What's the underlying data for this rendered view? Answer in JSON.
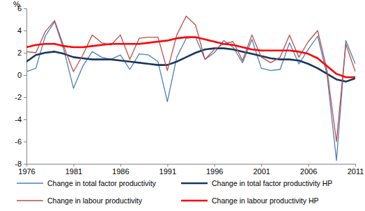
{
  "chart_data": {
    "type": "line",
    "ylabel": "%",
    "x": [
      1976,
      1977,
      1978,
      1979,
      1980,
      1981,
      1982,
      1983,
      1984,
      1985,
      1986,
      1987,
      1988,
      1989,
      1990,
      1991,
      1992,
      1993,
      1994,
      1995,
      1996,
      1997,
      1998,
      1999,
      2000,
      2001,
      2002,
      2003,
      2004,
      2005,
      2006,
      2007,
      2008,
      2009,
      2010,
      2011
    ],
    "xlim": [
      1976,
      2011
    ],
    "xticks": [
      1976,
      1981,
      1986,
      1991,
      1996,
      2001,
      2006,
      2011
    ],
    "ylim": [
      -8,
      6
    ],
    "yticks": [
      -8,
      -6,
      -4,
      -2,
      0,
      2,
      4,
      6
    ],
    "grid": false,
    "legend": "bottom",
    "series": [
      {
        "name": "Change in total factor productivity",
        "color": "#4a7ebb",
        "values": [
          0.3,
          0.6,
          3.5,
          4.8,
          2.2,
          -1.2,
          0.8,
          2.1,
          1.6,
          1.4,
          1.8,
          0.5,
          1.9,
          1.8,
          1.2,
          -2.4,
          1.6,
          3.3,
          3.4,
          1.4,
          2.0,
          3.1,
          2.5,
          1.1,
          3.2,
          0.6,
          0.4,
          0.5,
          2.9,
          1.0,
          2.3,
          3.5,
          0.0,
          -7.7,
          3.1,
          1.0
        ]
      },
      {
        "name": "Change in total factor productivity HP",
        "color": "#17375e",
        "values": [
          1.2,
          1.8,
          2.0,
          2.1,
          1.9,
          1.6,
          1.5,
          1.4,
          1.4,
          1.4,
          1.3,
          1.2,
          1.1,
          1.0,
          0.9,
          0.9,
          1.2,
          1.6,
          2.0,
          2.3,
          2.4,
          2.4,
          2.3,
          2.1,
          1.9,
          1.7,
          1.5,
          1.4,
          1.4,
          1.3,
          1.0,
          0.6,
          0.1,
          -0.4,
          -0.6,
          -0.3
        ]
      },
      {
        "name": "Change in labour productivity",
        "color": "#be4b48",
        "values": [
          2.1,
          2.0,
          3.9,
          4.9,
          2.5,
          0.3,
          1.8,
          3.6,
          2.9,
          2.7,
          3.6,
          1.4,
          3.3,
          3.4,
          3.4,
          0.4,
          3.6,
          5.3,
          4.5,
          1.4,
          2.3,
          2.8,
          3.0,
          1.3,
          3.6,
          1.6,
          1.1,
          1.6,
          3.6,
          1.6,
          3.0,
          4.0,
          0.4,
          -6.0,
          2.8,
          0.3
        ]
      },
      {
        "name": "Change in labour productivity HP",
        "color": "#ff0000",
        "values": [
          2.5,
          2.7,
          2.8,
          2.8,
          2.6,
          2.5,
          2.5,
          2.6,
          2.7,
          2.8,
          2.8,
          2.8,
          2.8,
          2.9,
          3.0,
          3.1,
          3.3,
          3.4,
          3.4,
          3.2,
          3.0,
          2.8,
          2.7,
          2.5,
          2.3,
          2.2,
          2.2,
          2.2,
          2.2,
          2.1,
          1.9,
          1.5,
          0.8,
          0.1,
          -0.2,
          -0.2
        ]
      }
    ]
  }
}
